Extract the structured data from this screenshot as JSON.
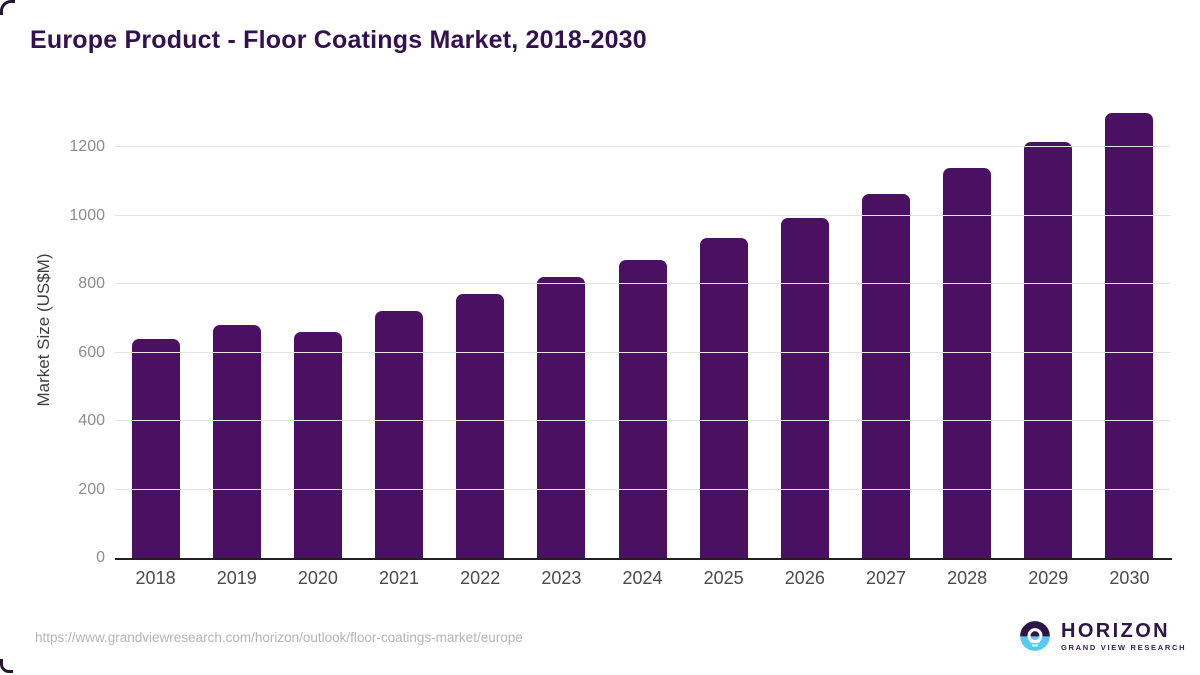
{
  "title": "Europe Product - Floor Coatings Market, 2018-2030",
  "source_url": "https://www.grandviewresearch.com/horizon/outlook/floor-coatings-market/europe",
  "logo": {
    "name": "HORIZON",
    "subtitle": "GRAND VIEW RESEARCH"
  },
  "colors": {
    "bar": "#4a1062",
    "title": "#331150",
    "gridline": "#e4e4e4",
    "axis_line": "#202020",
    "y_tick_label": "#8c8c8c",
    "x_tick_label": "#4a4a4a",
    "logo_purple": "#2d1645",
    "logo_blue": "#5cc8f0"
  },
  "chart_data": {
    "type": "bar",
    "title": "Europe Product - Floor Coatings Market, 2018-2030",
    "xlabel": "",
    "ylabel": "Market Size (US$M)",
    "categories": [
      "2018",
      "2019",
      "2020",
      "2021",
      "2022",
      "2023",
      "2024",
      "2025",
      "2026",
      "2027",
      "2028",
      "2029",
      "2030"
    ],
    "values": [
      640,
      680,
      660,
      722,
      770,
      820,
      872,
      935,
      993,
      1063,
      1138,
      1215,
      1300
    ],
    "ylim": [
      0,
      1335
    ],
    "yticks": [
      0,
      200,
      400,
      600,
      800,
      1000,
      1200
    ],
    "grid": true,
    "legend": false,
    "bar_color": "#4a1062"
  }
}
